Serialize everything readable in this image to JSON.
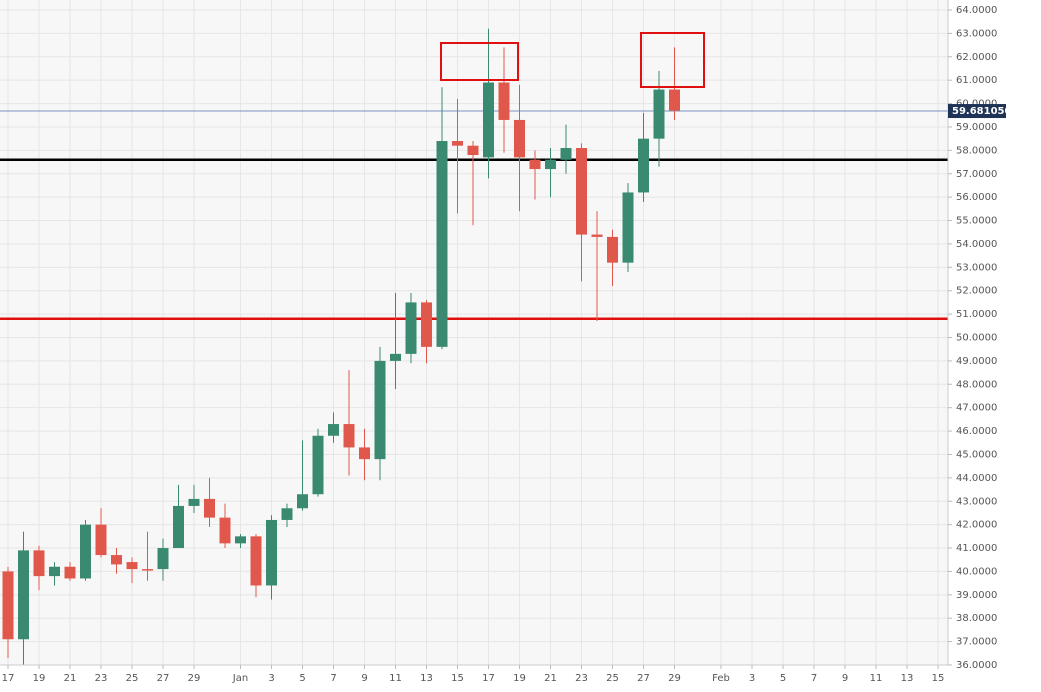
{
  "chart_data": {
    "type": "candlestick",
    "categories": [
      "17",
      null,
      "19",
      null,
      "21",
      null,
      "23",
      null,
      "25",
      null,
      "27",
      null,
      "29",
      null,
      null,
      "Jan",
      null,
      "3",
      null,
      "5",
      null,
      "7",
      null,
      "9",
      null,
      "11",
      null,
      "13",
      null,
      "15",
      null,
      "17",
      null,
      "19",
      null,
      "21",
      null,
      "23",
      null,
      "25",
      null,
      "27",
      null,
      "29",
      null,
      null,
      "Feb",
      null,
      "3",
      null,
      "5",
      null,
      "7",
      null,
      "9",
      null,
      "11",
      null,
      "13",
      null,
      "15"
    ],
    "open": [
      40,
      37.1,
      40.9,
      39.8,
      40.2,
      39.7,
      42.0,
      40.7,
      40.4,
      40.1,
      40.1,
      41.0,
      42.8,
      43.1,
      42.3,
      41.2,
      41.5,
      39.4,
      42.2,
      42.7,
      43.3,
      45.8,
      46.3,
      45.3,
      44.8,
      49.0,
      49.3,
      51.5,
      49.6,
      58.4,
      58.2,
      57.7,
      60.9,
      59.3,
      57.6,
      57.2,
      57.6,
      58.1,
      54.4,
      54.3,
      53.2,
      56.2,
      58.5,
      60.6,
      null,
      null,
      null,
      null,
      null,
      null,
      null,
      null,
      null,
      null,
      null,
      null,
      null,
      null,
      null,
      null,
      null
    ],
    "high": [
      40.2,
      41.7,
      41.1,
      40.4,
      40.4,
      42.2,
      42.7,
      41.0,
      40.6,
      41.7,
      41.4,
      43.7,
      43.7,
      44.0,
      42.9,
      41.6,
      41.6,
      42.4,
      42.9,
      45.6,
      46.1,
      46.8,
      48.6,
      46.1,
      49.6,
      51.9,
      51.9,
      51.6,
      60.7,
      60.2,
      58.4,
      63.2,
      62.4,
      60.8,
      58.0,
      58.1,
      59.1,
      58.3,
      55.4,
      54.6,
      56.6,
      59.6,
      61.4,
      62.4,
      null,
      null,
      null,
      null,
      null,
      null,
      null,
      null,
      null,
      null,
      null,
      null,
      null,
      null,
      null,
      null,
      null
    ],
    "low": [
      36.3,
      36.0,
      39.2,
      39.4,
      39.6,
      39.6,
      40.6,
      39.9,
      39.5,
      39.6,
      39.6,
      41.0,
      42.5,
      41.9,
      41.0,
      41.0,
      38.9,
      38.8,
      41.9,
      42.6,
      43.2,
      45.5,
      44.1,
      43.9,
      43.9,
      47.8,
      48.9,
      48.9,
      49.5,
      55.3,
      54.8,
      56.8,
      57.9,
      55.4,
      55.9,
      56.0,
      57.0,
      52.4,
      50.7,
      52.2,
      52.8,
      55.8,
      57.3,
      59.3,
      null,
      null,
      null,
      null,
      null,
      null,
      null,
      null,
      null,
      null,
      null,
      null,
      null,
      null,
      null,
      null,
      null
    ],
    "close": [
      37.1,
      40.9,
      39.8,
      40.2,
      39.7,
      42.0,
      40.7,
      40.3,
      40.1,
      40.1,
      41.0,
      42.8,
      43.1,
      42.3,
      41.2,
      41.5,
      39.4,
      42.2,
      42.7,
      43.3,
      45.8,
      46.3,
      45.3,
      44.8,
      49.0,
      49.3,
      51.5,
      49.6,
      58.4,
      58.2,
      57.8,
      60.9,
      59.3,
      57.7,
      57.2,
      57.6,
      58.1,
      54.4,
      54.3,
      53.2,
      56.2,
      58.5,
      60.6,
      59.7,
      null,
      null,
      null,
      null,
      null,
      null,
      null,
      null,
      null,
      null,
      null,
      null,
      null,
      null,
      null,
      null,
      null
    ],
    "up_color": "#3a8a72",
    "down_color": "#e0584c",
    "ylim": [
      36,
      64
    ],
    "yticks": [
      {
        "value": 36,
        "label": "36.0000"
      },
      {
        "value": 37,
        "label": "37.0000"
      },
      {
        "value": 38,
        "label": "38.0000"
      },
      {
        "value": 39,
        "label": "39.0000"
      },
      {
        "value": 40,
        "label": "40.0000"
      },
      {
        "value": 41,
        "label": "41.0000"
      },
      {
        "value": 42,
        "label": "42.0000"
      },
      {
        "value": 43,
        "label": "43.0000"
      },
      {
        "value": 44,
        "label": "44.0000"
      },
      {
        "value": 45,
        "label": "45.0000"
      },
      {
        "value": 46,
        "label": "46.0000"
      },
      {
        "value": 47,
        "label": "47.0000"
      },
      {
        "value": 48,
        "label": "48.0000"
      },
      {
        "value": 49,
        "label": "49.0000"
      },
      {
        "value": 50,
        "label": "50.0000"
      },
      {
        "value": 51,
        "label": "51.0000"
      },
      {
        "value": 52,
        "label": "52.0000"
      },
      {
        "value": 53,
        "label": "53.0000"
      },
      {
        "value": 54,
        "label": "54.0000"
      },
      {
        "value": 55,
        "label": "55.0000"
      },
      {
        "value": 56,
        "label": "56.0000"
      },
      {
        "value": 57,
        "label": "57.0000"
      },
      {
        "value": 58,
        "label": "58.0000"
      },
      {
        "value": 59,
        "label": "59.0000"
      },
      {
        "value": 60,
        "label": "60.0000"
      },
      {
        "value": 61,
        "label": "61.0000"
      },
      {
        "value": 62,
        "label": "62.0000"
      },
      {
        "value": 63,
        "label": "63.0000"
      },
      {
        "value": 64,
        "label": "64.0000"
      }
    ],
    "grid": true,
    "lines": [
      {
        "value": 59.68105,
        "label": "59.681050",
        "color": "#7d90c0"
      },
      {
        "value": 57.6,
        "color": "#000000"
      },
      {
        "value": 50.8,
        "color": "#e01010"
      }
    ]
  }
}
